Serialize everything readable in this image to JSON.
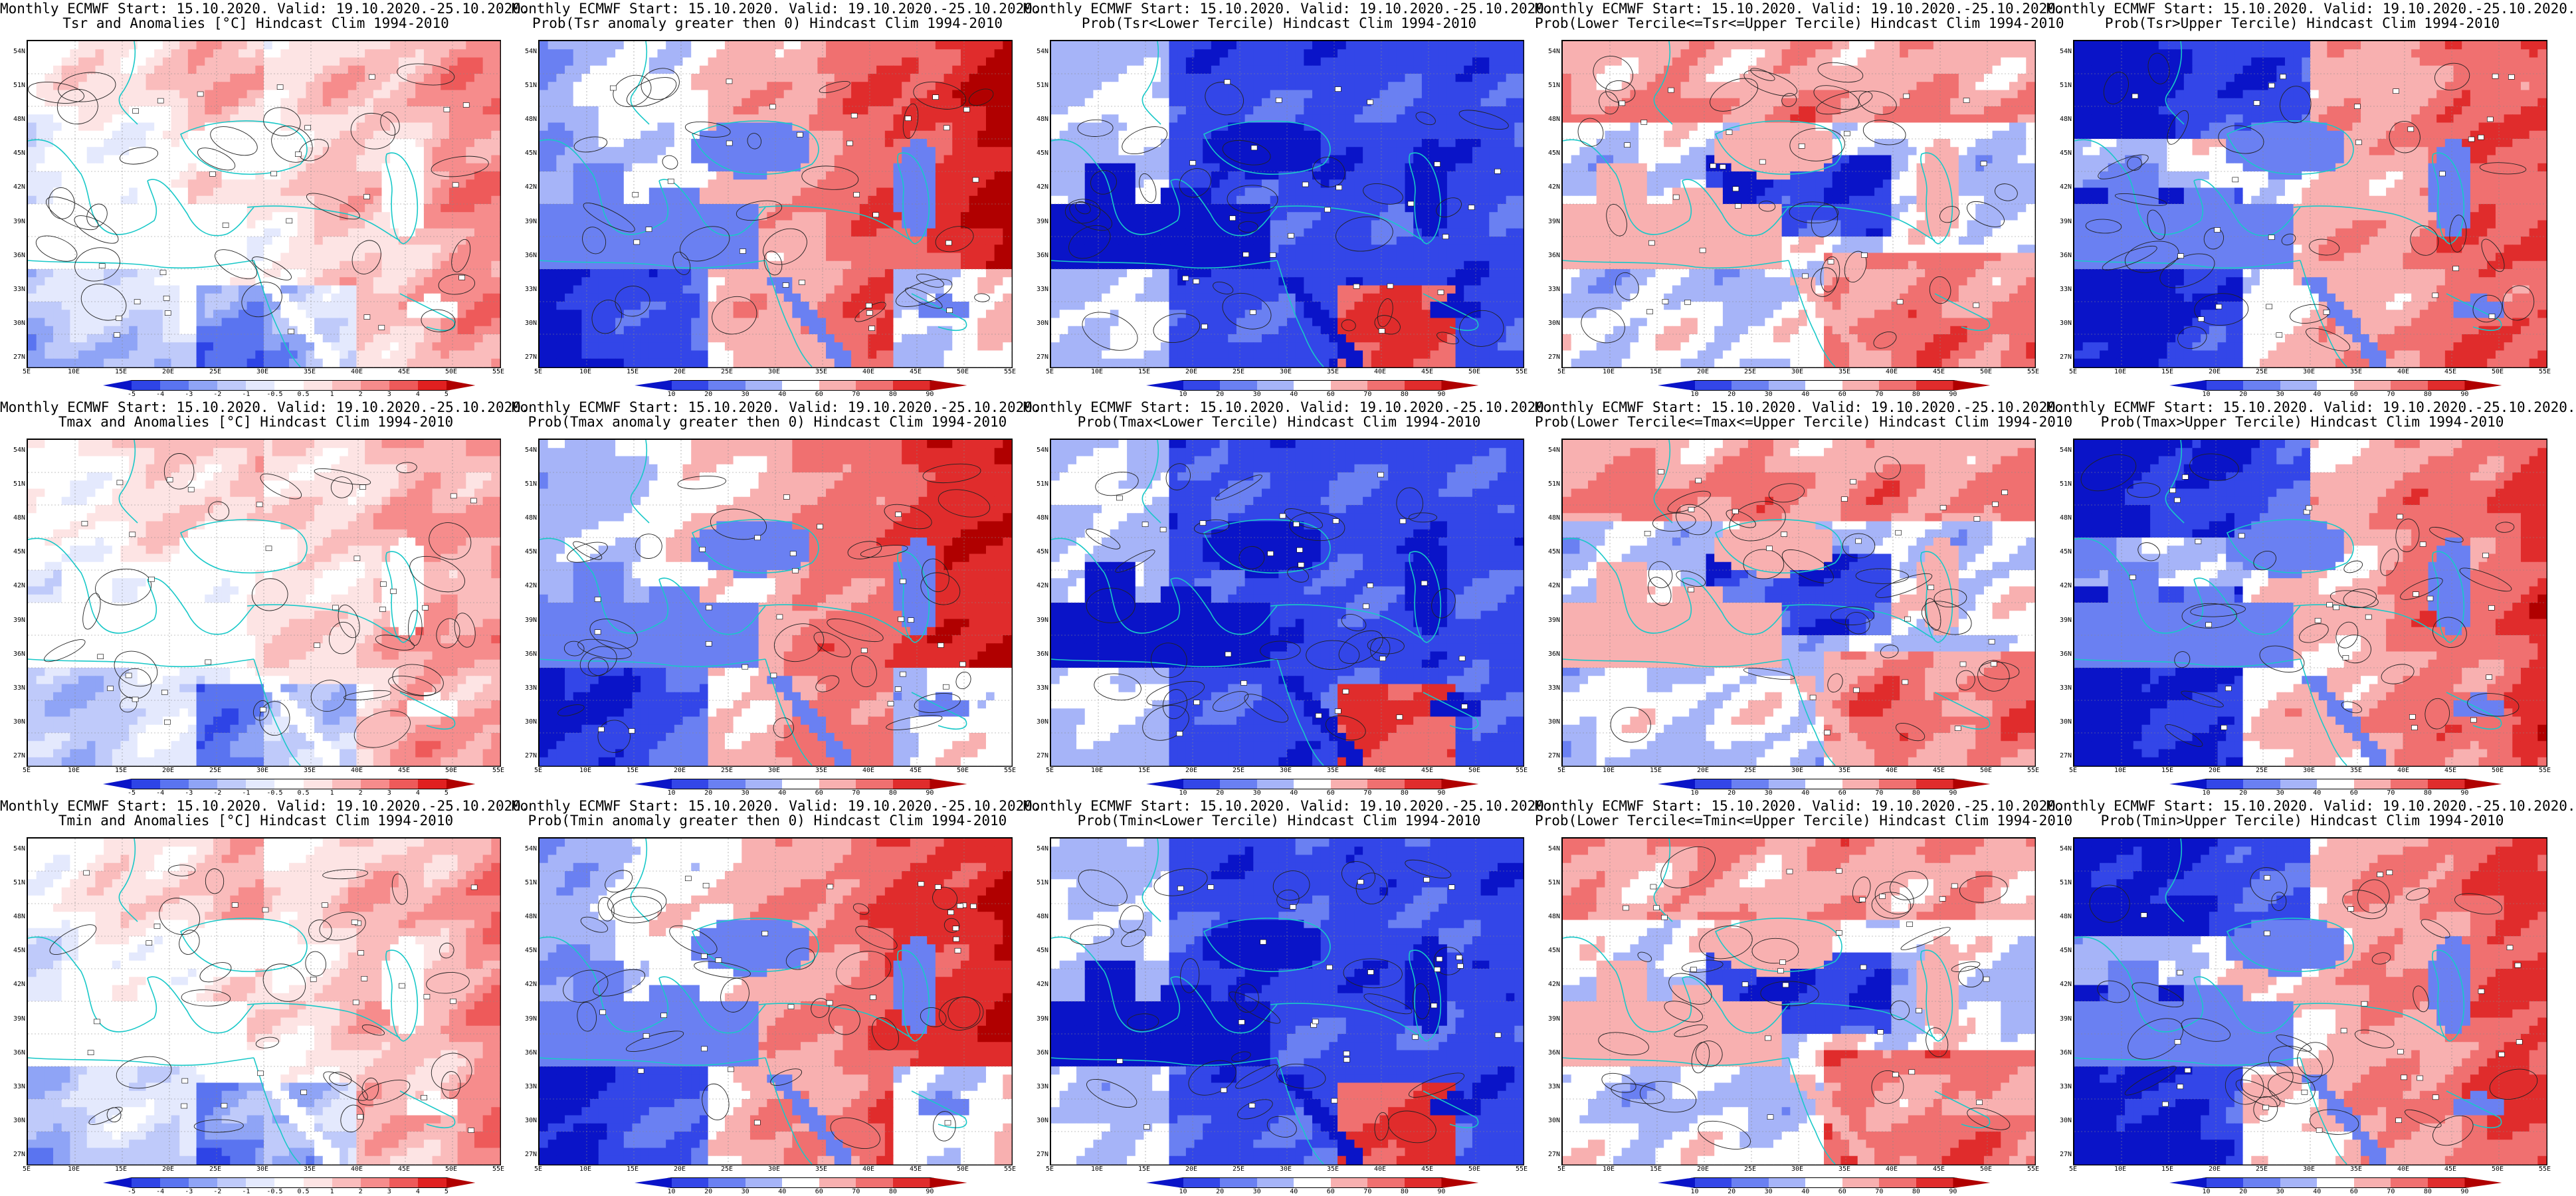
{
  "panels": [
    {
      "title1": "Monthly ECMWF Start: 15.10.2020. Valid: 19.10.2020.-25.10.2020.",
      "title2": "Tsr and Anomalies [°C] Hindcast Clim 1994-2010",
      "kind": "anom",
      "scale": "anom",
      "seed": 11
    },
    {
      "title1": "Monthly ECMWF Start: 15.10.2020. Valid: 19.10.2020.-25.10.2020.",
      "title2": "Prob(Tsr anomaly greater then 0) Hindcast Clim 1994-2010",
      "kind": "pos",
      "scale": "prob",
      "seed": 12
    },
    {
      "title1": "Monthly ECMWF Start: 15.10.2020. Valid: 19.10.2020.-25.10.2020.",
      "title2": "Prob(Tsr<Lower Tercile) Hindcast Clim 1994-2010",
      "kind": "lower",
      "scale": "prob",
      "seed": 13
    },
    {
      "title1": "Monthly ECMWF Start: 15.10.2020. Valid: 19.10.2020.-25.10.2020.",
      "title2": "Prob(Lower Tercile<=Tsr<=Upper Tercile) Hindcast Clim 1994-2010",
      "kind": "mid",
      "scale": "prob",
      "seed": 14
    },
    {
      "title1": "Monthly ECMWF Start: 15.10.2020. Valid: 19.10.2020.-25.10.2020.",
      "title2": "Prob(Tsr>Upper Tercile) Hindcast Clim 1994-2010",
      "kind": "upper",
      "scale": "prob",
      "seed": 15
    },
    {
      "title1": "Monthly ECMWF Start: 15.10.2020. Valid: 19.10.2020.-25.10.2020.",
      "title2": "Tmax and Anomalies [°C] Hindcast Clim 1994-2010",
      "kind": "anom",
      "scale": "anom",
      "seed": 21
    },
    {
      "title1": "Monthly ECMWF Start: 15.10.2020. Valid: 19.10.2020.-25.10.2020.",
      "title2": "Prob(Tmax anomaly greater then 0) Hindcast Clim 1994-2010",
      "kind": "pos",
      "scale": "prob",
      "seed": 22
    },
    {
      "title1": "Monthly ECMWF Start: 15.10.2020. Valid: 19.10.2020.-25.10.2020.",
      "title2": "Prob(Tmax<Lower Tercile) Hindcast Clim 1994-2010",
      "kind": "lower",
      "scale": "prob",
      "seed": 23
    },
    {
      "title1": "Monthly ECMWF Start: 15.10.2020. Valid: 19.10.2020.-25.10.2020.",
      "title2": "Prob(Lower Tercile<=Tmax<=Upper Tercile) Hindcast Clim 1994-2010",
      "kind": "mid",
      "scale": "prob",
      "seed": 24
    },
    {
      "title1": "Monthly ECMWF Start: 15.10.2020. Valid: 19.10.2020.-25.10.2020.",
      "title2": "Prob(Tmax>Upper Tercile) Hindcast Clim 1994-2010",
      "kind": "upper",
      "scale": "prob",
      "seed": 25
    },
    {
      "title1": "Monthly ECMWF Start: 15.10.2020. Valid: 19.10.2020.-25.10.2020.",
      "title2": "Tmin and Anomalies [°C] Hindcast Clim 1994-2010",
      "kind": "anom",
      "scale": "anom",
      "seed": 31
    },
    {
      "title1": "Monthly ECMWF Start: 15.10.2020. Valid: 19.10.2020.-25.10.2020.",
      "title2": "Prob(Tmin anomaly greater then 0) Hindcast Clim 1994-2010",
      "kind": "pos",
      "scale": "prob",
      "seed": 32
    },
    {
      "title1": "Monthly ECMWF Start: 15.10.2020. Valid: 19.10.2020.-25.10.2020.",
      "title2": "Prob(Tmin<Lower Tercile) Hindcast Clim 1994-2010",
      "kind": "lower",
      "scale": "prob",
      "seed": 33
    },
    {
      "title1": "Monthly ECMWF Start: 15.10.2020. Valid: 19.10.2020.-25.10.2020.",
      "title2": "Prob(Lower Tercile<=Tmin<=Upper Tercile) Hindcast Clim 1994-2010",
      "kind": "mid",
      "scale": "prob",
      "seed": 34
    },
    {
      "title1": "Monthly ECMWF Start: 15.10.2020. Valid: 19.10.2020.-25.10.2020.",
      "title2": "Prob(Tmin>Upper Tercile) Hindcast Clim 1994-2010",
      "kind": "upper",
      "scale": "prob",
      "seed": 35
    }
  ],
  "lat_labels": [
    "54N",
    "51N",
    "48N",
    "45N",
    "42N",
    "39N",
    "36N",
    "33N",
    "30N",
    "27N"
  ],
  "lon_labels": [
    "5E",
    "10E",
    "15E",
    "20E",
    "25E",
    "30E",
    "35E",
    "40E",
    "45E",
    "50E",
    "55E"
  ],
  "scales": {
    "anom": {
      "ticks": [
        "-5",
        "-4",
        "-3",
        "-2",
        "-1",
        "-0.5",
        "0.5",
        "1",
        "2",
        "3",
        "4",
        "5"
      ],
      "colors": [
        "#0a14c8",
        "#2e44e6",
        "#5a74f0",
        "#8fa4f6",
        "#bfcafa",
        "#e4e9fd",
        "#ffffff",
        "#fde4e4",
        "#fabcbc",
        "#f68c8c",
        "#ee5a5a",
        "#e02020",
        "#b00000"
      ]
    },
    "prob": {
      "ticks": [
        "10",
        "20",
        "30",
        "40",
        "60",
        "70",
        "80",
        "90"
      ],
      "colors": [
        "#0a14c8",
        "#3346e8",
        "#6a80f2",
        "#a6b4f8",
        "#ffffff",
        "#f8b0b0",
        "#f07070",
        "#e02c2c",
        "#b00000"
      ]
    }
  },
  "colors": {
    "coastline": "#19c8c8",
    "contour": "#222222",
    "land_marker": "#ffffff"
  }
}
